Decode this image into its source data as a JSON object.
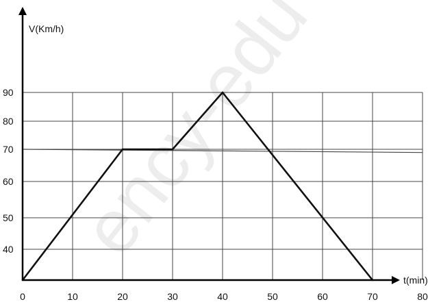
{
  "chart_data": {
    "type": "line",
    "xlabel": "t(min)",
    "ylabel": "V(Km/h)",
    "x_ticks": [
      "0",
      "10",
      "20",
      "30",
      "40",
      "50",
      "60",
      "70",
      "80"
    ],
    "y_ticks": [
      "40",
      "50",
      "60",
      "70",
      "80",
      "90"
    ],
    "xlim": [
      0,
      80
    ],
    "ylim": [
      30,
      90
    ],
    "grid": true,
    "series": [
      {
        "x": [
          0,
          20,
          30,
          40,
          70
        ],
        "y": [
          30,
          70,
          70,
          90,
          30
        ]
      }
    ],
    "reference_line": {
      "x": [
        0,
        80
      ],
      "y": [
        70,
        69
      ]
    },
    "watermark": "ency-edu",
    "colors": {
      "line": "#111111",
      "grid": "#444444",
      "axis": "#000000"
    }
  }
}
